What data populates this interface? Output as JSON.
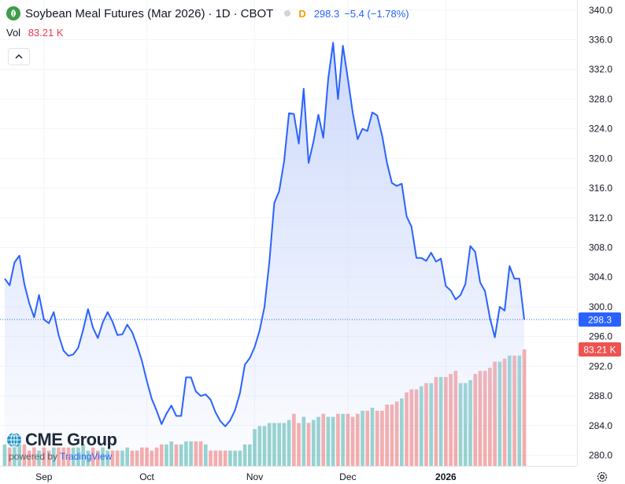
{
  "header": {
    "title": "Soybean Meal Futures (Mar 2026)",
    "interval": "1D",
    "exchange": "CBOT",
    "separator": "·",
    "flag": "D",
    "last_price": "298.3",
    "change": "−5.4 (−1.78%)",
    "change_color": "#2962ff",
    "icon": "leaf-icon"
  },
  "volume_row": {
    "label": "Vol",
    "value": "83.21 K",
    "value_color": "#f23645"
  },
  "price_label": "298.3",
  "volume_label": "83.21 K",
  "logo": {
    "brand": "CME Group",
    "powered_prefix": "powered by",
    "powered_brand": "TradingView"
  },
  "colors": {
    "line": "#2962ff",
    "area_top": "#c9d6fb",
    "vol_up": "#26a69a",
    "vol_down": "#ef5350",
    "price_label_bg": "#2962ff",
    "volume_label_bg": "#ef5350"
  },
  "chart_data": {
    "type": "area",
    "title": "Soybean Meal Futures (Mar 2026)",
    "price_axis": {
      "ticks": [
        280.0,
        284.0,
        288.0,
        292.0,
        296.0,
        300.0,
        304.0,
        308.0,
        312.0,
        316.0,
        320.0,
        324.0,
        328.0,
        332.0,
        336.0,
        340.0
      ],
      "range": [
        278.5,
        341.5
      ]
    },
    "time_axis": {
      "ticks": [
        {
          "label": "Sep",
          "index": 8
        },
        {
          "label": "Oct",
          "index": 29
        },
        {
          "label": "Nov",
          "index": 51
        },
        {
          "label": "Dec",
          "index": 70
        },
        {
          "label": "2026",
          "index": 90
        }
      ]
    },
    "grid": true,
    "series": [
      {
        "values": [
          303.8,
          302.9,
          306.0,
          306.9,
          303.1,
          300.5,
          298.6,
          301.6,
          298.3,
          297.8,
          299.3,
          296.2,
          294.1,
          293.4,
          293.6,
          294.5,
          296.9,
          299.7,
          297.2,
          295.8,
          297.9,
          299.3,
          298.0,
          296.2,
          296.3,
          297.6,
          296.6,
          294.8,
          292.7,
          290.0,
          287.6,
          286.0,
          284.2,
          285.6,
          286.7,
          285.3,
          285.3,
          290.5,
          290.5,
          288.6,
          288.0,
          288.2,
          287.5,
          285.8,
          284.6,
          283.9,
          284.7,
          286.1,
          288.4,
          292.2,
          293.1,
          294.6,
          296.8,
          300.0,
          306.1,
          314.0,
          315.6,
          319.6,
          326.1,
          326.0,
          322.0,
          329.4,
          319.4,
          322.3,
          325.9,
          322.8,
          330.7,
          335.6,
          328.0,
          335.2,
          330.8,
          326.2,
          322.6,
          324.0,
          323.7,
          326.2,
          325.8,
          323.1,
          319.4,
          316.7,
          316.3,
          316.6,
          312.2,
          310.8,
          306.6,
          306.6,
          306.2,
          307.3,
          306.1,
          306.5,
          302.8,
          302.2,
          301.0,
          301.6,
          303.1,
          308.2,
          307.4,
          303.3,
          302.1,
          298.5,
          295.9,
          300.0,
          299.5,
          305.5,
          303.8,
          303.8,
          298.3
        ]
      },
      {
        "name": "Vol",
        "values": [
          7,
          6,
          7,
          7,
          7,
          5,
          6,
          5,
          6,
          5,
          6,
          6,
          6,
          6,
          6,
          6,
          7,
          5,
          6,
          5,
          6,
          5,
          5,
          5,
          5,
          6,
          5,
          5,
          6,
          6,
          5,
          6,
          7,
          7,
          8,
          7,
          7,
          8,
          8,
          8,
          8,
          7,
          5,
          5,
          5,
          5,
          5,
          5,
          5,
          7,
          7,
          12,
          13,
          13,
          14,
          14,
          14,
          14,
          15,
          17,
          14,
          16,
          14,
          15,
          16,
          17,
          16,
          16,
          17,
          17,
          17,
          16,
          17,
          18,
          18,
          19,
          18,
          18,
          20,
          20,
          21,
          22,
          24,
          25,
          25,
          26,
          27,
          27,
          29,
          29,
          29,
          30,
          31,
          27,
          27,
          28,
          30,
          31,
          31,
          32,
          34,
          34,
          35,
          36,
          36,
          36,
          38
        ]
      }
    ]
  }
}
